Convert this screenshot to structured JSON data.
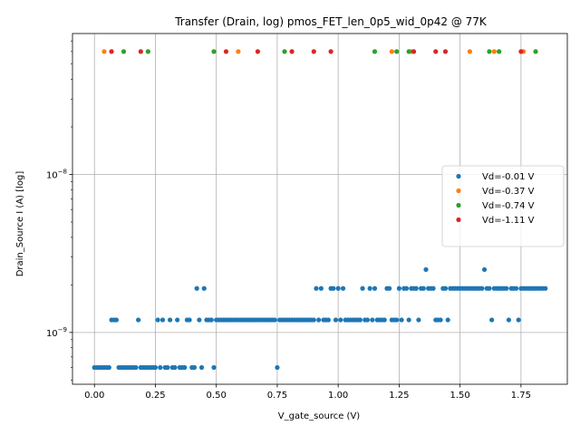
{
  "chart_data": {
    "type": "scatter",
    "title": "Transfer (Drain, log) pmos_FET_len_0p5_wid_0p42 @ 77K",
    "xlabel": "V_gate_source (V)",
    "ylabel": "Drain_Source I (A) [log]",
    "xlim": [
      -0.09,
      1.94
    ],
    "ylim": [
      4.7e-10,
      7.8e-08
    ],
    "yscale": "log",
    "grid": true,
    "legend_position": "right",
    "x_ticks": [
      {
        "value": 0.0,
        "label": "0.00"
      },
      {
        "value": 0.25,
        "label": "0.25"
      },
      {
        "value": 0.5,
        "label": "0.50"
      },
      {
        "value": 0.75,
        "label": "0.75"
      },
      {
        "value": 1.0,
        "label": "1.00"
      },
      {
        "value": 1.25,
        "label": "1.25"
      },
      {
        "value": 1.5,
        "label": "1.50"
      },
      {
        "value": 1.75,
        "label": "1.75"
      }
    ],
    "y_ticks": [
      {
        "value": 1e-09,
        "base": "10",
        "exp": "−9"
      },
      {
        "value": 1e-08,
        "base": "10",
        "exp": "−8"
      }
    ],
    "series": [
      {
        "name": "Vd=-0.01 V",
        "color": "#1f77b4",
        "x": [
          0.0,
          0.01,
          0.02,
          0.03,
          0.04,
          0.05,
          0.06,
          0.07,
          0.08,
          0.09,
          0.1,
          0.11,
          0.12,
          0.13,
          0.14,
          0.15,
          0.16,
          0.17,
          0.18,
          0.19,
          0.2,
          0.21,
          0.22,
          0.23,
          0.24,
          0.25,
          0.26,
          0.27,
          0.28,
          0.29,
          0.3,
          0.31,
          0.32,
          0.33,
          0.34,
          0.35,
          0.36,
          0.37,
          0.38,
          0.39,
          0.4,
          0.41,
          0.42,
          0.43,
          0.44,
          0.45,
          0.46,
          0.47,
          0.48,
          0.49,
          0.5,
          0.51,
          0.52,
          0.53,
          0.54,
          0.55,
          0.56,
          0.57,
          0.58,
          0.59,
          0.6,
          0.61,
          0.62,
          0.63,
          0.64,
          0.65,
          0.66,
          0.67,
          0.68,
          0.69,
          0.7,
          0.71,
          0.72,
          0.73,
          0.74,
          0.75,
          0.76,
          0.77,
          0.78,
          0.79,
          0.8,
          0.81,
          0.82,
          0.83,
          0.84,
          0.85,
          0.86,
          0.87,
          0.88,
          0.89,
          0.9,
          0.91,
          0.92,
          0.93,
          0.94,
          0.95,
          0.96,
          0.97,
          0.98,
          0.99,
          1.0,
          1.01,
          1.02,
          1.03,
          1.04,
          1.05,
          1.06,
          1.07,
          1.08,
          1.09,
          1.1,
          1.11,
          1.12,
          1.13,
          1.14,
          1.15,
          1.16,
          1.17,
          1.18,
          1.19,
          1.2,
          1.21,
          1.22,
          1.23,
          1.24,
          1.25,
          1.26,
          1.27,
          1.28,
          1.29,
          1.3,
          1.31,
          1.32,
          1.33,
          1.34,
          1.35,
          1.36,
          1.37,
          1.38,
          1.39,
          1.4,
          1.41,
          1.42,
          1.43,
          1.44,
          1.45,
          1.46,
          1.47,
          1.48,
          1.49,
          1.5,
          1.51,
          1.52,
          1.53,
          1.54,
          1.55,
          1.56,
          1.57,
          1.58,
          1.59,
          1.6,
          1.61,
          1.62,
          1.63,
          1.64,
          1.65,
          1.66,
          1.67,
          1.68,
          1.69,
          1.7,
          1.71,
          1.72,
          1.73,
          1.74,
          1.75,
          1.76,
          1.77,
          1.78,
          1.79,
          1.8,
          1.81,
          1.82,
          1.83,
          1.84,
          1.85
        ],
        "y": [
          6e-10,
          6e-10,
          6e-10,
          6e-10,
          6e-10,
          6e-10,
          6e-10,
          1.2e-09,
          1.2e-09,
          1.2e-09,
          6e-10,
          6e-10,
          6e-10,
          6e-10,
          6e-10,
          6e-10,
          6e-10,
          6e-10,
          1.2e-09,
          6e-10,
          6e-10,
          6e-10,
          6e-10,
          6e-10,
          6e-10,
          6e-10,
          1.2e-09,
          6e-10,
          1.2e-09,
          6e-10,
          6e-10,
          1.2e-09,
          6e-10,
          6e-10,
          1.2e-09,
          6e-10,
          6e-10,
          6e-10,
          1.2e-09,
          1.2e-09,
          6e-10,
          6e-10,
          1.9e-09,
          1.2e-09,
          6e-10,
          1.9e-09,
          1.2e-09,
          1.2e-09,
          1.2e-09,
          6e-10,
          1.2e-09,
          1.2e-09,
          1.2e-09,
          1.2e-09,
          1.2e-09,
          1.2e-09,
          1.2e-09,
          1.2e-09,
          1.2e-09,
          1.2e-09,
          1.2e-09,
          1.2e-09,
          1.2e-09,
          1.2e-09,
          1.2e-09,
          1.2e-09,
          1.2e-09,
          1.2e-09,
          1.2e-09,
          1.2e-09,
          1.2e-09,
          1.2e-09,
          1.2e-09,
          1.2e-09,
          1.2e-09,
          6e-10,
          1.2e-09,
          1.2e-09,
          1.2e-09,
          1.2e-09,
          1.2e-09,
          1.2e-09,
          1.2e-09,
          1.2e-09,
          1.2e-09,
          1.2e-09,
          1.2e-09,
          1.2e-09,
          1.2e-09,
          1.2e-09,
          1.2e-09,
          1.9e-09,
          1.2e-09,
          1.9e-09,
          1.2e-09,
          1.2e-09,
          1.2e-09,
          1.9e-09,
          1.9e-09,
          1.2e-09,
          1.9e-09,
          1.2e-09,
          1.9e-09,
          1.2e-09,
          1.2e-09,
          1.2e-09,
          1.2e-09,
          1.2e-09,
          1.2e-09,
          1.2e-09,
          1.9e-09,
          1.2e-09,
          1.2e-09,
          1.9e-09,
          1.2e-09,
          1.9e-09,
          1.2e-09,
          1.2e-09,
          1.2e-09,
          1.2e-09,
          1.9e-09,
          1.9e-09,
          1.2e-09,
          1.2e-09,
          1.2e-09,
          1.9e-09,
          1.2e-09,
          1.9e-09,
          1.9e-09,
          1.2e-09,
          1.9e-09,
          1.9e-09,
          1.9e-09,
          1.2e-09,
          1.9e-09,
          1.9e-09,
          2.5e-09,
          1.9e-09,
          1.9e-09,
          1.9e-09,
          1.2e-09,
          1.2e-09,
          1.2e-09,
          1.9e-09,
          1.9e-09,
          1.2e-09,
          1.9e-09,
          1.9e-09,
          1.9e-09,
          1.9e-09,
          1.9e-09,
          1.9e-09,
          1.9e-09,
          1.9e-09,
          1.9e-09,
          1.9e-09,
          1.9e-09,
          1.9e-09,
          1.9e-09,
          1.9e-09,
          2.5e-09,
          1.9e-09,
          1.9e-09,
          1.2e-09,
          1.9e-09,
          1.9e-09,
          1.9e-09,
          1.9e-09,
          1.9e-09,
          1.9e-09,
          1.2e-09,
          1.9e-09,
          1.9e-09,
          1.9e-09,
          1.2e-09,
          1.9e-09,
          1.9e-09,
          1.9e-09,
          1.9e-09,
          1.9e-09,
          1.9e-09,
          1.9e-09,
          1.9e-09,
          1.9e-09,
          1.9e-09,
          1.9e-09
        ]
      },
      {
        "name": "Vd=-0.37 V",
        "color": "#ff7f0e",
        "x": [
          0.04,
          0.59,
          1.22,
          1.3,
          1.54,
          1.64,
          1.76
        ],
        "y": [
          6e-08,
          6e-08,
          6e-08,
          6e-08,
          6e-08,
          6e-08,
          6e-08
        ]
      },
      {
        "name": "Vd=-0.74 V",
        "color": "#2ca02c",
        "x": [
          0.12,
          0.22,
          0.49,
          0.78,
          1.15,
          1.24,
          1.29,
          1.62,
          1.66,
          1.81
        ],
        "y": [
          6e-08,
          6e-08,
          6e-08,
          6e-08,
          6e-08,
          6e-08,
          6e-08,
          6e-08,
          6e-08,
          6e-08
        ]
      },
      {
        "name": "Vd=-1.11 V",
        "color": "#d62728",
        "x": [
          0.07,
          0.19,
          0.54,
          0.67,
          0.81,
          0.9,
          0.97,
          1.31,
          1.4,
          1.44,
          1.75
        ],
        "y": [
          6e-08,
          6e-08,
          6e-08,
          6e-08,
          6e-08,
          6e-08,
          6e-08,
          6e-08,
          6e-08,
          6e-08,
          6e-08
        ]
      }
    ]
  }
}
